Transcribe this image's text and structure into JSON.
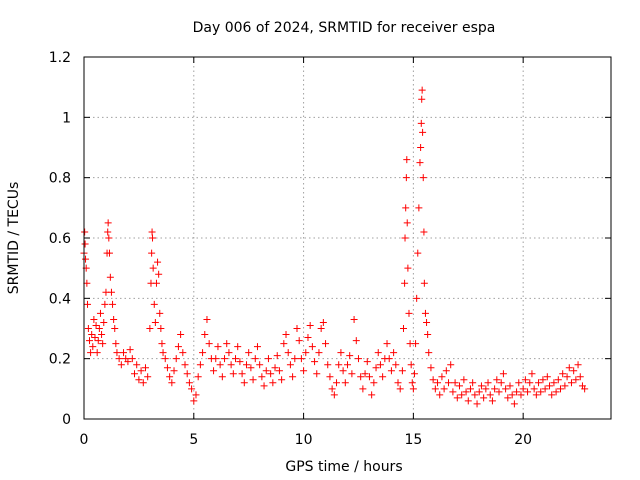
{
  "chart_data": {
    "type": "scatter",
    "title": "Day 006 of 2024, SRMTID for receiver espa",
    "xlabel": "GPS time / hours",
    "ylabel": "SRMTID / TECUs",
    "xlim": [
      0,
      24
    ],
    "ylim": [
      0,
      1.2
    ],
    "xticks": [
      0,
      5,
      10,
      15,
      20
    ],
    "xtick_labels": [
      "0",
      "5",
      "10",
      "15",
      "20"
    ],
    "yticks": [
      0,
      0.2,
      0.4,
      0.6,
      0.8,
      1.0,
      1.2
    ],
    "ytick_labels": [
      "0",
      "0.2",
      "0.4",
      "0.6",
      "0.8",
      "1",
      "1.2"
    ],
    "grid": true,
    "marker": "+",
    "colors": {
      "series": "#ff0000",
      "grid": "#a0a0a0",
      "axes": "#000000"
    },
    "series": [
      {
        "name": "SRMTID",
        "points": [
          [
            0.0,
            0.55
          ],
          [
            0.03,
            0.62
          ],
          [
            0.05,
            0.58
          ],
          [
            0.07,
            0.53
          ],
          [
            0.1,
            0.5
          ],
          [
            0.13,
            0.45
          ],
          [
            0.16,
            0.38
          ],
          [
            0.2,
            0.3
          ],
          [
            0.25,
            0.26
          ],
          [
            0.3,
            0.22
          ],
          [
            0.35,
            0.28
          ],
          [
            0.4,
            0.24
          ],
          [
            0.45,
            0.33
          ],
          [
            0.5,
            0.27
          ],
          [
            0.55,
            0.31
          ],
          [
            0.6,
            0.22
          ],
          [
            0.65,
            0.26
          ],
          [
            0.7,
            0.3
          ],
          [
            0.75,
            0.35
          ],
          [
            0.8,
            0.28
          ],
          [
            0.85,
            0.25
          ],
          [
            0.9,
            0.32
          ],
          [
            0.95,
            0.38
          ],
          [
            1.0,
            0.42
          ],
          [
            1.05,
            0.55
          ],
          [
            1.08,
            0.62
          ],
          [
            1.1,
            0.65
          ],
          [
            1.13,
            0.6
          ],
          [
            1.16,
            0.55
          ],
          [
            1.2,
            0.47
          ],
          [
            1.25,
            0.42
          ],
          [
            1.3,
            0.38
          ],
          [
            1.35,
            0.33
          ],
          [
            1.4,
            0.3
          ],
          [
            1.45,
            0.25
          ],
          [
            1.5,
            0.22
          ],
          [
            1.6,
            0.2
          ],
          [
            1.7,
            0.18
          ],
          [
            1.8,
            0.22
          ],
          [
            1.9,
            0.2
          ],
          [
            2.0,
            0.19
          ],
          [
            2.1,
            0.23
          ],
          [
            2.2,
            0.2
          ],
          [
            2.3,
            0.15
          ],
          [
            2.4,
            0.18
          ],
          [
            2.5,
            0.13
          ],
          [
            2.6,
            0.16
          ],
          [
            2.7,
            0.12
          ],
          [
            2.8,
            0.17
          ],
          [
            2.9,
            0.14
          ],
          [
            3.0,
            0.3
          ],
          [
            3.05,
            0.45
          ],
          [
            3.08,
            0.55
          ],
          [
            3.1,
            0.62
          ],
          [
            3.12,
            0.6
          ],
          [
            3.15,
            0.5
          ],
          [
            3.2,
            0.38
          ],
          [
            3.25,
            0.32
          ],
          [
            3.3,
            0.45
          ],
          [
            3.35,
            0.52
          ],
          [
            3.4,
            0.48
          ],
          [
            3.45,
            0.35
          ],
          [
            3.5,
            0.3
          ],
          [
            3.55,
            0.25
          ],
          [
            3.6,
            0.22
          ],
          [
            3.7,
            0.2
          ],
          [
            3.8,
            0.17
          ],
          [
            3.9,
            0.14
          ],
          [
            4.0,
            0.12
          ],
          [
            4.1,
            0.16
          ],
          [
            4.2,
            0.2
          ],
          [
            4.3,
            0.24
          ],
          [
            4.4,
            0.28
          ],
          [
            4.5,
            0.22
          ],
          [
            4.6,
            0.18
          ],
          [
            4.7,
            0.15
          ],
          [
            4.8,
            0.12
          ],
          [
            4.9,
            0.1
          ],
          [
            5.0,
            0.06
          ],
          [
            5.1,
            0.08
          ],
          [
            5.2,
            0.14
          ],
          [
            5.3,
            0.18
          ],
          [
            5.4,
            0.22
          ],
          [
            5.5,
            0.28
          ],
          [
            5.6,
            0.33
          ],
          [
            5.7,
            0.25
          ],
          [
            5.8,
            0.2
          ],
          [
            5.9,
            0.16
          ],
          [
            6.0,
            0.2
          ],
          [
            6.1,
            0.24
          ],
          [
            6.2,
            0.18
          ],
          [
            6.3,
            0.14
          ],
          [
            6.4,
            0.2
          ],
          [
            6.5,
            0.25
          ],
          [
            6.6,
            0.22
          ],
          [
            6.7,
            0.18
          ],
          [
            6.8,
            0.15
          ],
          [
            6.9,
            0.2
          ],
          [
            7.0,
            0.24
          ],
          [
            7.1,
            0.19
          ],
          [
            7.2,
            0.15
          ],
          [
            7.3,
            0.12
          ],
          [
            7.4,
            0.18
          ],
          [
            7.5,
            0.22
          ],
          [
            7.6,
            0.17
          ],
          [
            7.7,
            0.13
          ],
          [
            7.8,
            0.2
          ],
          [
            7.9,
            0.24
          ],
          [
            8.0,
            0.18
          ],
          [
            8.1,
            0.14
          ],
          [
            8.2,
            0.11
          ],
          [
            8.3,
            0.16
          ],
          [
            8.4,
            0.2
          ],
          [
            8.5,
            0.15
          ],
          [
            8.6,
            0.12
          ],
          [
            8.7,
            0.17
          ],
          [
            8.8,
            0.21
          ],
          [
            8.9,
            0.16
          ],
          [
            9.0,
            0.13
          ],
          [
            9.1,
            0.25
          ],
          [
            9.2,
            0.28
          ],
          [
            9.3,
            0.22
          ],
          [
            9.4,
            0.18
          ],
          [
            9.5,
            0.14
          ],
          [
            9.6,
            0.2
          ],
          [
            9.7,
            0.3
          ],
          [
            9.8,
            0.26
          ],
          [
            9.9,
            0.2
          ],
          [
            10.0,
            0.16
          ],
          [
            10.1,
            0.22
          ],
          [
            10.2,
            0.27
          ],
          [
            10.3,
            0.31
          ],
          [
            10.4,
            0.24
          ],
          [
            10.5,
            0.19
          ],
          [
            10.6,
            0.15
          ],
          [
            10.7,
            0.22
          ],
          [
            10.8,
            0.3
          ],
          [
            10.9,
            0.32
          ],
          [
            11.0,
            0.25
          ],
          [
            11.1,
            0.18
          ],
          [
            11.2,
            0.14
          ],
          [
            11.3,
            0.1
          ],
          [
            11.4,
            0.08
          ],
          [
            11.5,
            0.12
          ],
          [
            11.6,
            0.18
          ],
          [
            11.7,
            0.22
          ],
          [
            11.8,
            0.16
          ],
          [
            11.9,
            0.12
          ],
          [
            12.0,
            0.18
          ],
          [
            12.1,
            0.21
          ],
          [
            12.2,
            0.15
          ],
          [
            12.3,
            0.33
          ],
          [
            12.4,
            0.26
          ],
          [
            12.5,
            0.2
          ],
          [
            12.6,
            0.14
          ],
          [
            12.7,
            0.1
          ],
          [
            12.8,
            0.15
          ],
          [
            12.9,
            0.19
          ],
          [
            13.0,
            0.14
          ],
          [
            13.1,
            0.08
          ],
          [
            13.2,
            0.12
          ],
          [
            13.3,
            0.17
          ],
          [
            13.4,
            0.22
          ],
          [
            13.5,
            0.18
          ],
          [
            13.6,
            0.14
          ],
          [
            13.7,
            0.2
          ],
          [
            13.8,
            0.25
          ],
          [
            13.9,
            0.2
          ],
          [
            14.0,
            0.16
          ],
          [
            14.1,
            0.22
          ],
          [
            14.2,
            0.18
          ],
          [
            14.3,
            0.12
          ],
          [
            14.4,
            0.1
          ],
          [
            14.5,
            0.16
          ],
          [
            14.55,
            0.3
          ],
          [
            14.6,
            0.45
          ],
          [
            14.62,
            0.6
          ],
          [
            14.65,
            0.7
          ],
          [
            14.68,
            0.8
          ],
          [
            14.7,
            0.86
          ],
          [
            14.72,
            0.65
          ],
          [
            14.75,
            0.5
          ],
          [
            14.8,
            0.35
          ],
          [
            14.85,
            0.25
          ],
          [
            14.9,
            0.18
          ],
          [
            14.95,
            0.12
          ],
          [
            15.0,
            0.1
          ],
          [
            15.05,
            0.15
          ],
          [
            15.1,
            0.25
          ],
          [
            15.15,
            0.4
          ],
          [
            15.2,
            0.55
          ],
          [
            15.25,
            0.7
          ],
          [
            15.3,
            0.85
          ],
          [
            15.33,
            0.9
          ],
          [
            15.36,
            0.98
          ],
          [
            15.38,
            1.06
          ],
          [
            15.4,
            1.09
          ],
          [
            15.42,
            0.95
          ],
          [
            15.45,
            0.8
          ],
          [
            15.48,
            0.62
          ],
          [
            15.5,
            0.45
          ],
          [
            15.55,
            0.35
          ],
          [
            15.6,
            0.32
          ],
          [
            15.65,
            0.28
          ],
          [
            15.7,
            0.22
          ],
          [
            15.8,
            0.17
          ],
          [
            15.9,
            0.13
          ],
          [
            16.0,
            0.1
          ],
          [
            16.1,
            0.12
          ],
          [
            16.2,
            0.08
          ],
          [
            16.3,
            0.14
          ],
          [
            16.4,
            0.1
          ],
          [
            16.5,
            0.16
          ],
          [
            16.6,
            0.12
          ],
          [
            16.7,
            0.18
          ],
          [
            16.8,
            0.09
          ],
          [
            16.9,
            0.12
          ],
          [
            17.0,
            0.07
          ],
          [
            17.1,
            0.11
          ],
          [
            17.2,
            0.08
          ],
          [
            17.3,
            0.13
          ],
          [
            17.4,
            0.09
          ],
          [
            17.5,
            0.06
          ],
          [
            17.6,
            0.1
          ],
          [
            17.7,
            0.12
          ],
          [
            17.8,
            0.08
          ],
          [
            17.9,
            0.05
          ],
          [
            18.0,
            0.09
          ],
          [
            18.1,
            0.11
          ],
          [
            18.2,
            0.07
          ],
          [
            18.3,
            0.1
          ],
          [
            18.4,
            0.12
          ],
          [
            18.5,
            0.08
          ],
          [
            18.6,
            0.06
          ],
          [
            18.7,
            0.1
          ],
          [
            18.8,
            0.13
          ],
          [
            18.9,
            0.09
          ],
          [
            19.0,
            0.12
          ],
          [
            19.1,
            0.15
          ],
          [
            19.2,
            0.1
          ],
          [
            19.3,
            0.07
          ],
          [
            19.4,
            0.11
          ],
          [
            19.5,
            0.08
          ],
          [
            19.6,
            0.05
          ],
          [
            19.7,
            0.09
          ],
          [
            19.8,
            0.12
          ],
          [
            19.9,
            0.08
          ],
          [
            20.0,
            0.1
          ],
          [
            20.1,
            0.13
          ],
          [
            20.2,
            0.09
          ],
          [
            20.3,
            0.12
          ],
          [
            20.4,
            0.15
          ],
          [
            20.5,
            0.1
          ],
          [
            20.6,
            0.08
          ],
          [
            20.7,
            0.12
          ],
          [
            20.8,
            0.09
          ],
          [
            20.9,
            0.13
          ],
          [
            21.0,
            0.1
          ],
          [
            21.1,
            0.14
          ],
          [
            21.2,
            0.11
          ],
          [
            21.3,
            0.08
          ],
          [
            21.4,
            0.12
          ],
          [
            21.5,
            0.09
          ],
          [
            21.6,
            0.13
          ],
          [
            21.7,
            0.1
          ],
          [
            21.8,
            0.15
          ],
          [
            21.9,
            0.11
          ],
          [
            22.0,
            0.14
          ],
          [
            22.1,
            0.17
          ],
          [
            22.2,
            0.12
          ],
          [
            22.3,
            0.16
          ],
          [
            22.4,
            0.13
          ],
          [
            22.5,
            0.18
          ],
          [
            22.6,
            0.14
          ],
          [
            22.7,
            0.11
          ],
          [
            22.8,
            0.1
          ]
        ]
      }
    ]
  }
}
